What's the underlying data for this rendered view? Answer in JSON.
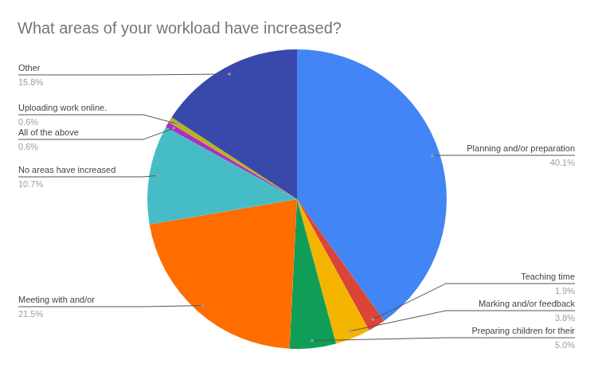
{
  "chart_data": {
    "type": "pie",
    "title": "What areas of your workload have increased?",
    "categories": [
      "Planning and/or preparation",
      "Teaching time",
      "Marking and/or feedback",
      "Preparing children for their",
      "Meeting with and/or",
      "No areas have increased",
      "All of the above",
      "Uploading work online.",
      "Other"
    ],
    "values": [
      40.1,
      1.9,
      3.8,
      5.0,
      21.5,
      10.7,
      0.6,
      0.6,
      15.8
    ],
    "value_labels": [
      "40.1%",
      "1.9%",
      "3.8%",
      "5.0%",
      "21.5%",
      "10.7%",
      "0.6%",
      "0.6%",
      "15.8%"
    ],
    "colors": [
      "#4285f4",
      "#db4437",
      "#f4b400",
      "#0f9d58",
      "#ff6d00",
      "#46bdc6",
      "#ab30c4",
      "#b7b31a",
      "#3949ab"
    ],
    "data_labels": true
  }
}
